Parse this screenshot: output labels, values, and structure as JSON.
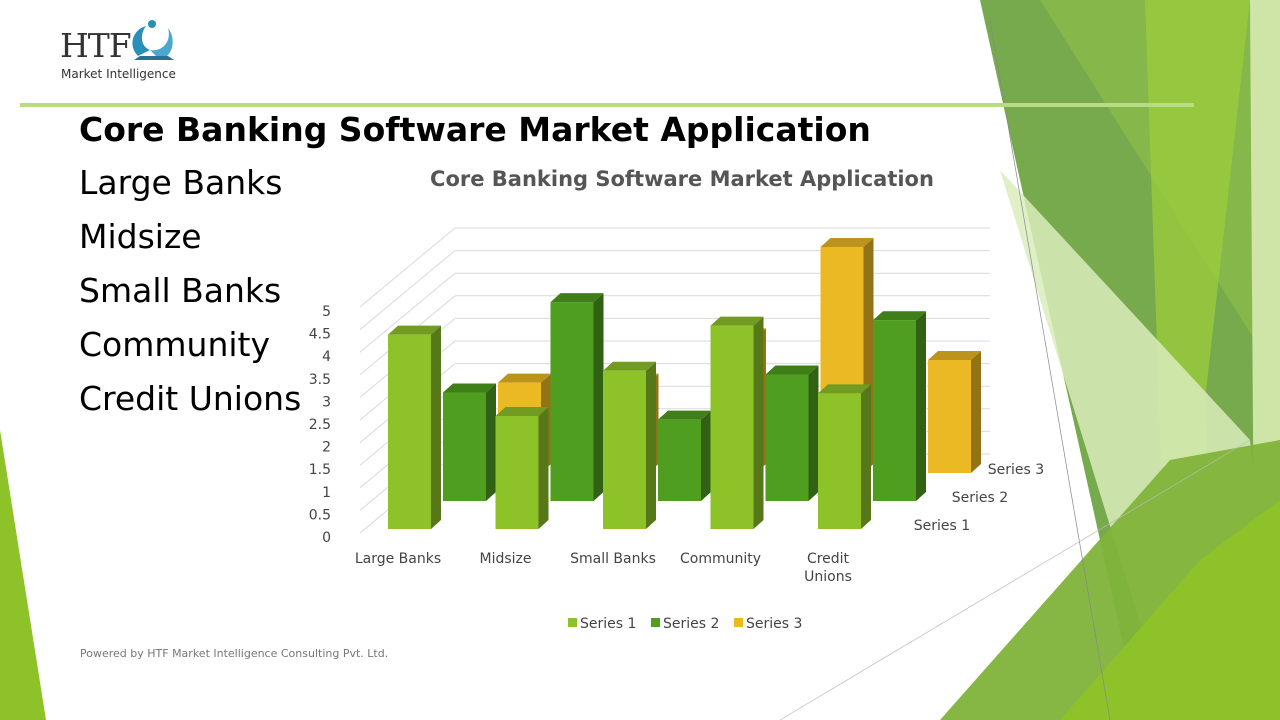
{
  "logo": {
    "wordmark": "HTF",
    "tagline": "Market Intelligence"
  },
  "slide": {
    "title": "Core Banking Software Market Application",
    "applications": [
      "Large Banks",
      "Midsize",
      "Small Banks",
      "Community",
      "Credit Unions"
    ],
    "footer": "Powered by HTF Market Intelligence Consulting Pvt. Ltd."
  },
  "colors": {
    "series1": "#8dc229",
    "series2": "#4f9e1f",
    "series3": "#ebb923",
    "accent": "#b8db84"
  },
  "chart_data": {
    "type": "bar",
    "subtype": "3d-clustered-column",
    "title": "Core Banking Software Market Application",
    "categories": [
      "Large Banks",
      "Midsize",
      "Small Banks",
      "Community",
      "Credit Unions"
    ],
    "category_tick_labels": [
      [
        "Large Banks"
      ],
      [
        "Midsize"
      ],
      [
        "Small Banks"
      ],
      [
        "Community"
      ],
      [
        "Credit",
        "Unions"
      ]
    ],
    "series": [
      {
        "name": "Series 1",
        "values": [
          4.3,
          2.5,
          3.5,
          4.5,
          3.0
        ]
      },
      {
        "name": "Series 2",
        "values": [
          2.4,
          4.4,
          1.8,
          2.8,
          4.0
        ]
      },
      {
        "name": "Series 3",
        "values": [
          2.0,
          2.0,
          3.0,
          5.0,
          2.5
        ]
      }
    ],
    "yticks": [
      "0",
      "0.5",
      "1",
      "1.5",
      "2",
      "2.5",
      "3",
      "3.5",
      "4",
      "4.5",
      "5"
    ],
    "ylim": [
      0,
      5
    ],
    "grid": true,
    "legend": "bottom"
  }
}
